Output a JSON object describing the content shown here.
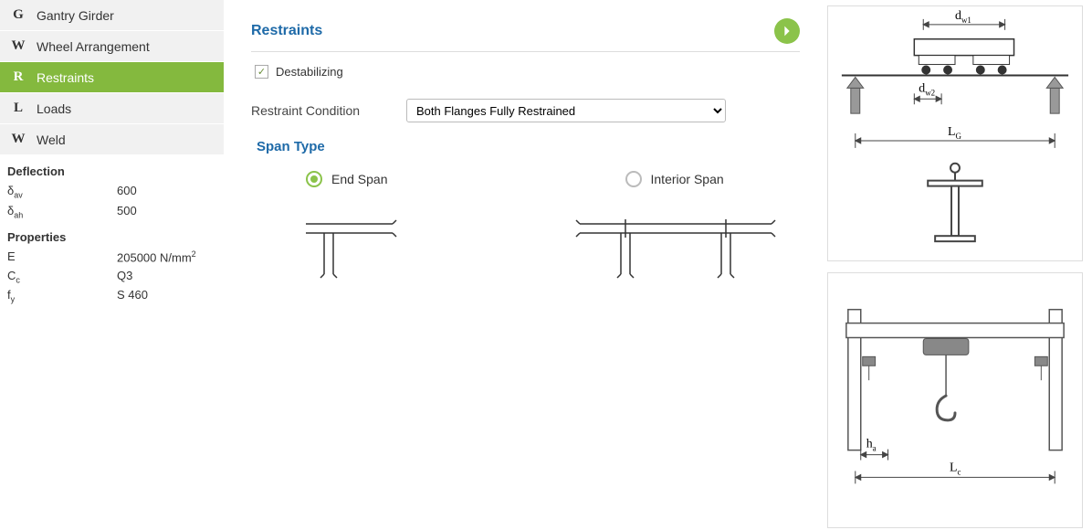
{
  "sidebar": {
    "nav": [
      {
        "key": "G",
        "label": "Gantry Girder",
        "active": false
      },
      {
        "key": "W",
        "label": "Wheel Arrangement",
        "active": false
      },
      {
        "key": "R",
        "label": "Restraints",
        "active": true
      },
      {
        "key": "L",
        "label": "Loads",
        "active": false
      },
      {
        "key": "W",
        "label": "Weld",
        "active": false
      }
    ],
    "sections": [
      {
        "title": "Deflection",
        "rows": [
          {
            "label_html": "δ<sub>av</sub>",
            "value_html": "600"
          },
          {
            "label_html": "δ<sub>ah</sub>",
            "value_html": "500"
          }
        ]
      },
      {
        "title": "Properties",
        "rows": [
          {
            "label_html": "E",
            "value_html": "205000 N/mm<sup>2</sup>"
          },
          {
            "label_html": "C<sub>c</sub>",
            "value_html": "Q3"
          },
          {
            "label_html": "f<sub>y</sub>",
            "value_html": "S 460"
          }
        ]
      }
    ]
  },
  "main": {
    "title": "Restraints",
    "checkbox": {
      "label": "Destabilizing",
      "checked": true
    },
    "restraint_condition": {
      "label": "Restraint Condition",
      "selected": "Both Flanges Fully Restrained",
      "options": [
        "Both Flanges Fully Restrained"
      ]
    },
    "span_type": {
      "title": "Span Type",
      "options": [
        {
          "label": "End Span",
          "selected": true
        },
        {
          "label": "Interior Span",
          "selected": false
        }
      ]
    }
  },
  "diagrams": {
    "top": {
      "labels": {
        "dw1": "d",
        "dw1_sub": "w1",
        "dw2": "d",
        "dw2_sub": "w2",
        "LG": "L",
        "LG_sub": "G"
      }
    },
    "bottom": {
      "labels": {
        "ha": "h",
        "ha_sub": "a",
        "Lc": "L",
        "Lc_sub": "c"
      }
    }
  },
  "colors": {
    "accent_green": "#8bc34a",
    "nav_green": "#84b93e",
    "link_blue": "#1e6aa8",
    "border": "#dddddd"
  }
}
